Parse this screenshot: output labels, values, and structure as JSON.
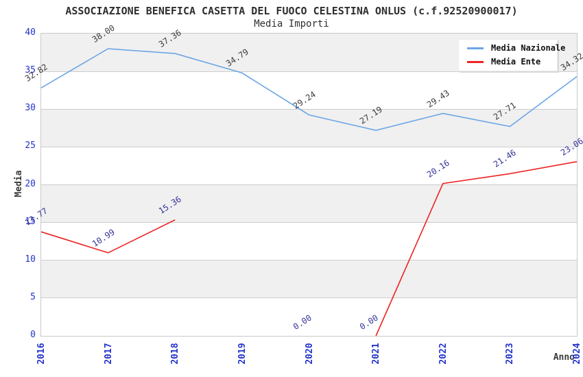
{
  "header": {
    "title": "ASSOCIAZIONE BENEFICA CASETTA DEL FUOCO CELESTINA ONLUS (c.f.92520900017)",
    "subtitle": "Media Importi"
  },
  "legend": {
    "items": [
      {
        "label": "Media Nazionale",
        "color": "#6ca6e4"
      },
      {
        "label": "Media Ente",
        "color": "#ee2222"
      }
    ]
  },
  "axes": {
    "y_title": "Media",
    "x_title": "Anno",
    "y_ticks": [
      0,
      5,
      10,
      15,
      20,
      25,
      30,
      35,
      40
    ],
    "tick_color": "#2233cc"
  },
  "chart_data": {
    "type": "line",
    "title": "ASSOCIAZIONE BENEFICA CASETTA DEL FUOCO CELESTINA ONLUS (c.f.92520900017)",
    "subtitle": "Media Importi",
    "xlabel": "Anno",
    "ylabel": "Media",
    "ylim": [
      0,
      40
    ],
    "y_tick_step": 5,
    "grid": true,
    "band_fill": "alternating-horizontal",
    "legend_position": "top-right",
    "categories": [
      "2016",
      "2017",
      "2018",
      "2019",
      "2020",
      "2021",
      "2022",
      "2023",
      "2024"
    ],
    "series": [
      {
        "name": "Media Nazionale",
        "color": "#6ca6e4",
        "label_color": "#3c3c3c",
        "values": [
          32.82,
          38.0,
          37.36,
          34.79,
          29.24,
          27.19,
          29.43,
          27.71,
          34.32
        ],
        "segments": [
          [
            0,
            8
          ]
        ]
      },
      {
        "name": "Media Ente",
        "color": "#ee2222",
        "label_color": "#333399",
        "values": [
          13.77,
          10.99,
          15.36,
          null,
          0.0,
          0.0,
          20.16,
          21.46,
          23.06
        ],
        "segments": [
          [
            0,
            2
          ],
          [
            5,
            8
          ]
        ]
      }
    ]
  },
  "colors": {
    "band_gray": "#f0f0f0",
    "gridline": "#cdcdcd",
    "plot_border": "#c9c9c9"
  }
}
